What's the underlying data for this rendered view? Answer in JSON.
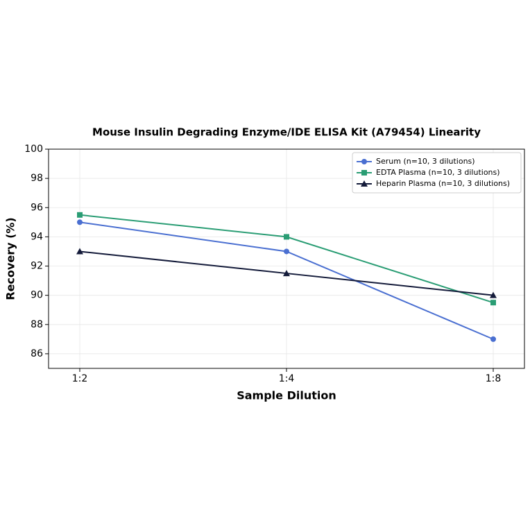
{
  "chart_data": {
    "type": "line",
    "title": "Mouse Insulin Degrading Enzyme/IDE ELISA Kit (A79454) Linearity",
    "x_label": "Sample Dilution",
    "y_label": "Recovery (%)",
    "categories": [
      "1:2",
      "1:4",
      "1:8"
    ],
    "series": [
      {
        "name": "Serum (n=10, 3 dilutions)",
        "color": "#4a6fd1",
        "marker": "circle",
        "values": [
          95,
          93,
          87
        ]
      },
      {
        "name": "EDTA Plasma (n=10, 3 dilutions)",
        "color": "#2a9d74",
        "marker": "square",
        "values": [
          95.5,
          94,
          89.5
        ]
      },
      {
        "name": "Heparin Plasma (n=10, 3 dilutions)",
        "color": "#141b3a",
        "marker": "triangle",
        "values": [
          93,
          91.5,
          90
        ]
      }
    ],
    "ylim": [
      85,
      100
    ],
    "yticks": [
      86,
      88,
      90,
      92,
      94,
      96,
      98,
      100
    ],
    "grid": true,
    "legend": "upper-right"
  }
}
